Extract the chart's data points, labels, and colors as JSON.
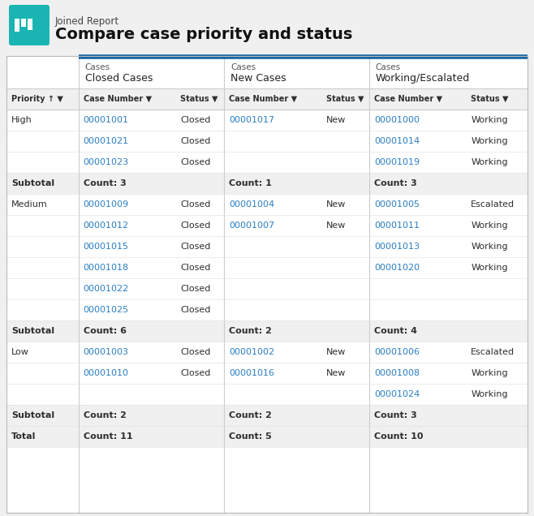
{
  "title_small": "Joined Report",
  "title_large": "Compare case priority and status",
  "icon_color": "#1ab5b3",
  "bg_color": "#f0f0f0",
  "table_bg": "#ffffff",
  "blue_bar_color": "#1464a5",
  "link_color": "#2b7fc3",
  "text_color": "#2e2e2e",
  "gray_text": "#555555",
  "subtotal_bg": "#f0f0f0",
  "header_row_bg": "#f0f0f0",
  "col_bounds": [
    0.0,
    0.138,
    0.324,
    0.418,
    0.604,
    0.696,
    0.882,
    1.0
  ],
  "group_headers": [
    {
      "label1": "Cases",
      "label2": "Closed Cases"
    },
    {
      "label1": "Cases",
      "label2": "New Cases"
    },
    {
      "label1": "Cases",
      "label2": "Working/Escalated"
    }
  ],
  "col_headers": [
    "Priority ↑ ▼",
    "Case Number ▼",
    "Status ▼",
    "Case Number ▼",
    "Status ▼",
    "Case Number ▼",
    "Status ▼"
  ],
  "sections": [
    {
      "priority": "High",
      "rows": [
        [
          "00001001",
          "Closed",
          "00001017",
          "New",
          "00001000",
          "Working"
        ],
        [
          "00001021",
          "Closed",
          "",
          "",
          "00001014",
          "Working"
        ],
        [
          "00001023",
          "Closed",
          "",
          "",
          "00001019",
          "Working"
        ]
      ],
      "subtotal": [
        "Count: 3",
        "Count: 1",
        "Count: 3"
      ]
    },
    {
      "priority": "Medium",
      "rows": [
        [
          "00001009",
          "Closed",
          "00001004",
          "New",
          "00001005",
          "Escalated"
        ],
        [
          "00001012",
          "Closed",
          "00001007",
          "New",
          "00001011",
          "Working"
        ],
        [
          "00001015",
          "Closed",
          "",
          "",
          "00001013",
          "Working"
        ],
        [
          "00001018",
          "Closed",
          "",
          "",
          "00001020",
          "Working"
        ],
        [
          "00001022",
          "Closed",
          "",
          "",
          "",
          ""
        ],
        [
          "00001025",
          "Closed",
          "",
          "",
          "",
          ""
        ]
      ],
      "subtotal": [
        "Count: 6",
        "Count: 2",
        "Count: 4"
      ]
    },
    {
      "priority": "Low",
      "rows": [
        [
          "00001003",
          "Closed",
          "00001002",
          "New",
          "00001006",
          "Escalated"
        ],
        [
          "00001010",
          "Closed",
          "00001016",
          "New",
          "00001008",
          "Working"
        ],
        [
          "",
          "",
          "",
          "",
          "00001024",
          "Working"
        ]
      ],
      "subtotal": [
        "Count: 2",
        "Count: 2",
        "Count: 3"
      ]
    }
  ],
  "total": [
    "Count: 11",
    "Count: 5",
    "Count: 10"
  ]
}
